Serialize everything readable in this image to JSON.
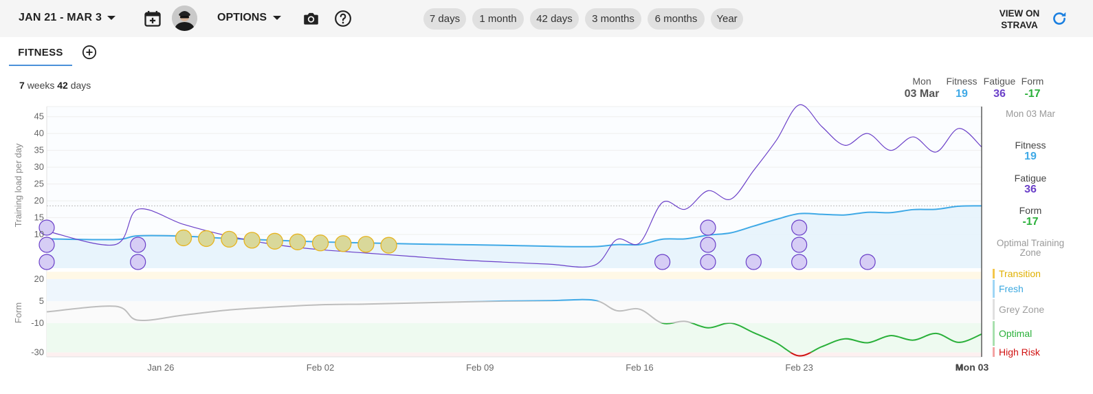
{
  "toolbar": {
    "date_range": "JAN 21 - MAR 3",
    "options_label": "OPTIONS",
    "view_strava": [
      "VIEW ON",
      "STRAVA"
    ],
    "ranges": [
      {
        "label": "7 days"
      },
      {
        "label": "1 month"
      },
      {
        "label": "42 days"
      },
      {
        "label": "3 months"
      },
      {
        "label": "6 months"
      },
      {
        "label": "Year"
      }
    ]
  },
  "tabs": {
    "fitness": "FITNESS"
  },
  "summary": {
    "weeks": "7",
    "weeks_unit": "weeks",
    "days": "42",
    "days_unit": "days"
  },
  "header_values": {
    "date_day": "Mon",
    "date": "03 Mar",
    "fitness_label": "Fitness",
    "fitness": "19",
    "fatigue_label": "Fatigue",
    "fatigue": "36",
    "form_label": "Form",
    "form": "-17"
  },
  "side_panel": {
    "date": "Mon 03 Mar",
    "fitness_label": "Fitness",
    "fitness": "19",
    "fatigue_label": "Fatigue",
    "fatigue": "36",
    "form_label": "Form",
    "form": "-17",
    "optimal_zone": "Optimal Training Zone",
    "zones": [
      {
        "label": "Transition",
        "color": "#e0b000"
      },
      {
        "label": "Fresh",
        "color": "#3aa8e0"
      },
      {
        "label": "Grey Zone",
        "color": "#9e9e9e"
      },
      {
        "label": "Optimal",
        "color": "#2ab03a"
      },
      {
        "label": "High Risk",
        "color": "#d01010"
      }
    ]
  },
  "colors": {
    "fitness": "#3fa9e6",
    "fatigue": "#6a3fc8",
    "form_optimal": "#2ab03a",
    "form_high_risk": "#d01010",
    "form_grey": "#bdbdbd"
  },
  "chart_data": [
    {
      "type": "line",
      "ylabel": "Training load per day",
      "y_ticks": [
        10,
        15,
        20,
        25,
        30,
        35,
        40,
        45
      ],
      "ylim": [
        0,
        48
      ],
      "x_ticks": [
        "Jan 26",
        "Feb 02",
        "Feb 09",
        "Feb 16",
        "Feb 23",
        "M"
      ],
      "x_cursor_label": "Mon 03 Mar",
      "grid": true,
      "series": [
        {
          "name": "Fitness",
          "x": [
            0,
            3,
            4,
            6,
            8,
            10,
            12,
            14,
            16,
            18,
            20,
            22,
            24,
            25,
            26,
            27,
            28,
            29,
            30,
            31,
            32,
            33,
            34,
            35,
            36,
            37,
            38,
            39,
            40,
            41
          ],
          "y": [
            8.7,
            8.5,
            9.6,
            9.5,
            8.8,
            8.3,
            7.8,
            7.5,
            7.2,
            7.0,
            6.8,
            6.5,
            6.4,
            7.0,
            7.0,
            8.6,
            8.7,
            9.8,
            10.5,
            12.5,
            14.5,
            16.2,
            16.0,
            15.8,
            16.6,
            16.5,
            17.4,
            17.5,
            18.4,
            18.5
          ]
        },
        {
          "name": "Fatigue",
          "x": [
            0,
            3,
            4,
            6,
            8,
            10,
            12,
            14,
            16,
            18,
            20,
            22,
            24,
            25,
            26,
            27,
            28,
            29,
            30,
            31,
            32,
            33,
            34,
            35,
            36,
            37,
            38,
            39,
            40,
            41
          ],
          "y": [
            11.0,
            7.0,
            17.5,
            13.0,
            9.5,
            7.0,
            5.5,
            4.5,
            3.5,
            2.5,
            1.8,
            1.2,
            0.8,
            8.5,
            7.5,
            19.5,
            17.5,
            23.0,
            20.5,
            29.0,
            38.0,
            48.5,
            42.0,
            36.5,
            40.0,
            35.0,
            39.0,
            34.5,
            41.5,
            36.0
          ]
        }
      ],
      "activities": [
        {
          "x": 0,
          "count": 3,
          "color": "purple"
        },
        {
          "x": 4,
          "count": 2,
          "color": "purple"
        },
        {
          "x": 6,
          "count": 1,
          "color": "yellow",
          "y": 9.0
        },
        {
          "x": 7,
          "count": 1,
          "color": "yellow",
          "y": 8.8
        },
        {
          "x": 8,
          "count": 1,
          "color": "yellow",
          "y": 8.6
        },
        {
          "x": 9,
          "count": 1,
          "color": "yellow",
          "y": 8.3
        },
        {
          "x": 10,
          "count": 1,
          "color": "yellow",
          "y": 8.0
        },
        {
          "x": 11,
          "count": 1,
          "color": "yellow",
          "y": 7.8
        },
        {
          "x": 12,
          "count": 1,
          "color": "yellow",
          "y": 7.5
        },
        {
          "x": 13,
          "count": 1,
          "color": "yellow",
          "y": 7.3
        },
        {
          "x": 14,
          "count": 1,
          "color": "yellow",
          "y": 7.1
        },
        {
          "x": 15,
          "count": 1,
          "color": "yellow",
          "y": 6.8
        },
        {
          "x": 27,
          "count": 1,
          "color": "purple"
        },
        {
          "x": 29,
          "count": 3,
          "color": "purple"
        },
        {
          "x": 31,
          "count": 1,
          "color": "purple"
        },
        {
          "x": 33,
          "count": 3,
          "color": "purple"
        },
        {
          "x": 36,
          "count": 1,
          "color": "purple"
        }
      ]
    },
    {
      "type": "line",
      "ylabel": "Form",
      "y_ticks": [
        20,
        5,
        -10,
        -30
      ],
      "ylim": [
        -33,
        27
      ],
      "zones": [
        {
          "name": "Transition",
          "from": 20,
          "to": 25,
          "color": "#fff8e6"
        },
        {
          "name": "Fresh",
          "from": 5,
          "to": 20,
          "color": "#eef6fd"
        },
        {
          "name": "Grey Zone",
          "from": -10,
          "to": 5,
          "color": "#fafafa"
        },
        {
          "name": "Optimal",
          "from": -30,
          "to": -10,
          "color": "#eefaf0"
        },
        {
          "name": "High Risk",
          "from": -33,
          "to": -30,
          "color": "#fdf0f0"
        }
      ],
      "series": [
        {
          "name": "Form",
          "x": [
            0,
            3,
            4,
            6,
            8,
            10,
            12,
            14,
            16,
            18,
            20,
            22,
            24,
            25,
            26,
            27,
            28,
            29,
            30,
            31,
            32,
            33,
            34,
            35,
            36,
            37,
            38,
            39,
            40,
            41
          ],
          "y": [
            -2.3,
            1.5,
            -8.0,
            -4.5,
            -1.0,
            1.0,
            2.5,
            3.0,
            3.7,
            4.4,
            5.0,
            5.3,
            5.6,
            -1.5,
            -0.5,
            -10.0,
            -8.8,
            -13.2,
            -10.0,
            -16.5,
            -23.5,
            -32.3,
            -26.0,
            -20.7,
            -23.4,
            -18.5,
            -21.6,
            -17.0,
            -23.1,
            -17.5
          ]
        }
      ]
    }
  ]
}
